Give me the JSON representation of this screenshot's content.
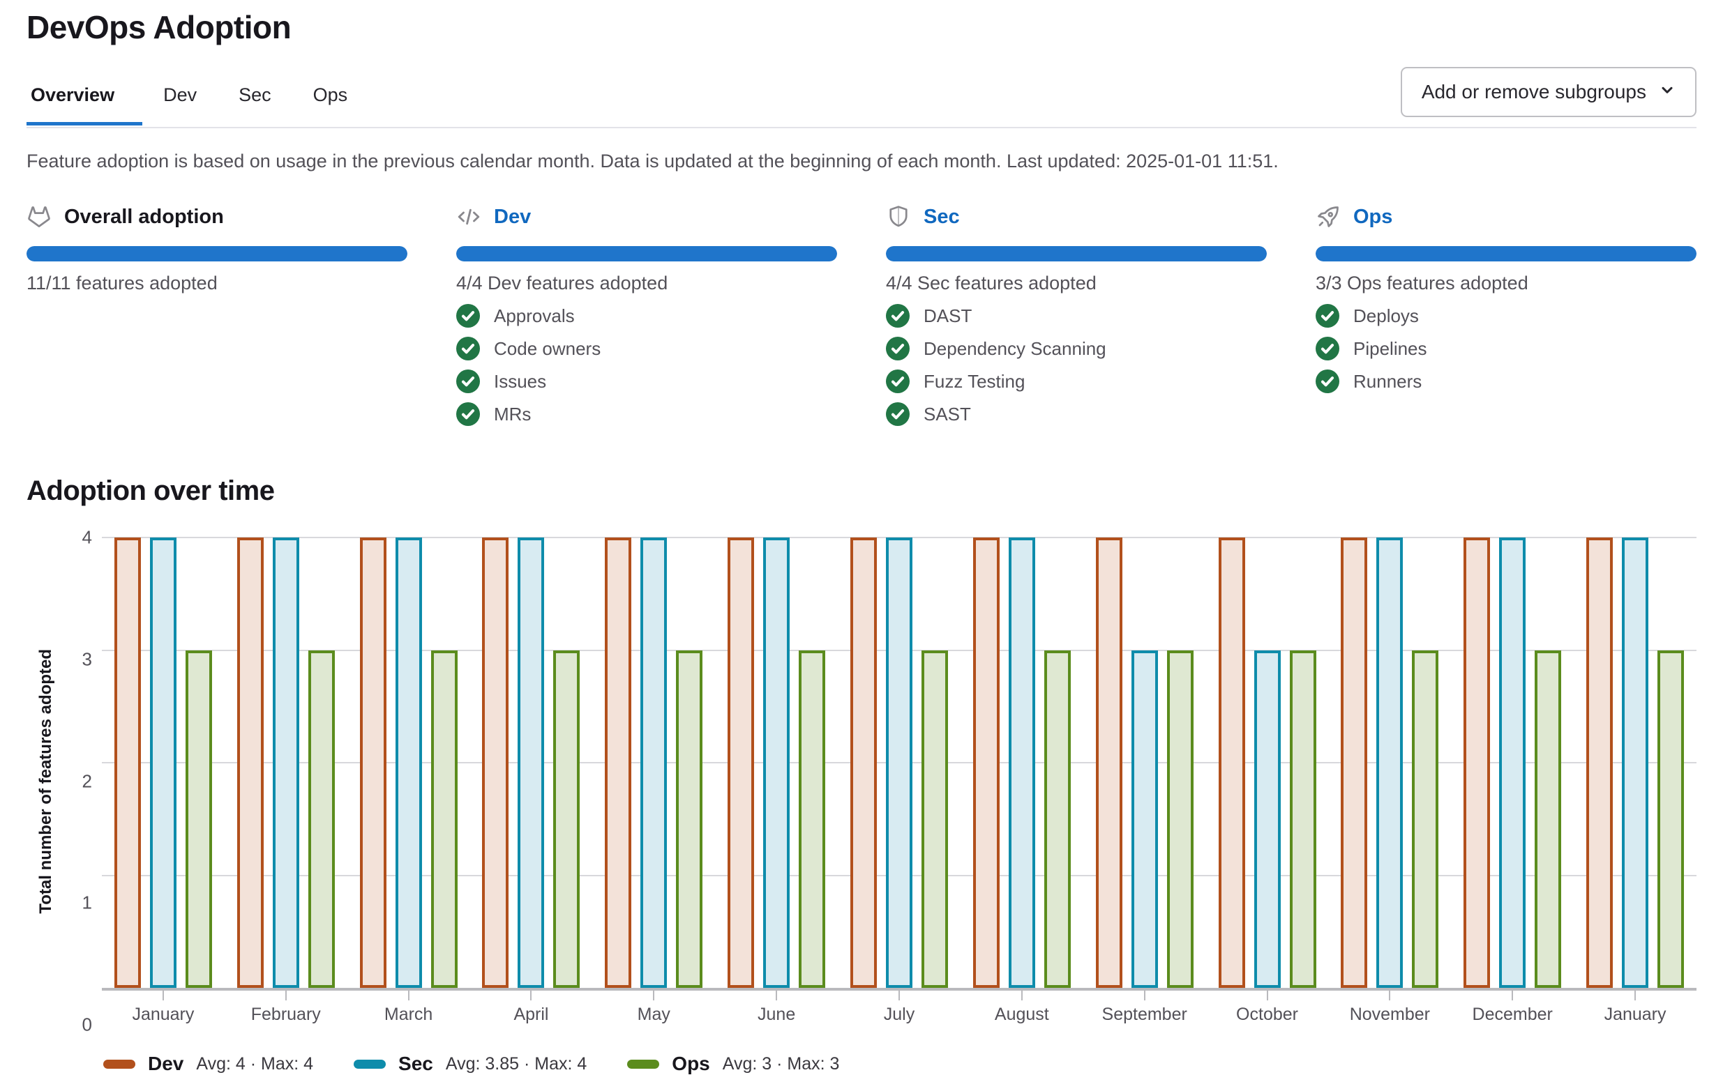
{
  "page": {
    "title": "DevOps Adoption"
  },
  "tabs": [
    {
      "label": "Overview",
      "active": true
    },
    {
      "label": "Dev",
      "active": false
    },
    {
      "label": "Sec",
      "active": false
    },
    {
      "label": "Ops",
      "active": false
    }
  ],
  "subgroups_button": {
    "label": "Add or remove subgroups",
    "icon": "chevron-down-icon"
  },
  "description": "Feature adoption is based on usage in the previous calendar month. Data is updated at the beginning of each month. Last updated: 2025-01-01 11:51.",
  "summary_cards": [
    {
      "icon": "tanuki-icon",
      "title": "Overall adoption",
      "title_is_link": false,
      "progress_percent": 100,
      "progress_label": "11/11 features adopted",
      "features": []
    },
    {
      "icon": "code-icon",
      "title": "Dev",
      "title_is_link": true,
      "progress_percent": 100,
      "progress_label": "4/4 Dev features adopted",
      "features": [
        "Approvals",
        "Code owners",
        "Issues",
        "MRs"
      ]
    },
    {
      "icon": "shield-icon",
      "title": "Sec",
      "title_is_link": true,
      "progress_percent": 100,
      "progress_label": "4/4 Sec features adopted",
      "features": [
        "DAST",
        "Dependency Scanning",
        "Fuzz Testing",
        "SAST"
      ]
    },
    {
      "icon": "rocket-icon",
      "title": "Ops",
      "title_is_link": true,
      "progress_percent": 100,
      "progress_label": "3/3 Ops features adopted",
      "features": [
        "Deploys",
        "Pipelines",
        "Runners"
      ]
    }
  ],
  "chart_section_title": "Adoption over time",
  "chart_data": {
    "type": "bar",
    "title": "Adoption over time",
    "categories": [
      "January",
      "February",
      "March",
      "April",
      "May",
      "June",
      "July",
      "August",
      "September",
      "October",
      "November",
      "December",
      "January"
    ],
    "series": [
      {
        "name": "Dev",
        "values": [
          4,
          4,
          4,
          4,
          4,
          4,
          4,
          4,
          4,
          4,
          4,
          4,
          4
        ],
        "color": "#b2501c",
        "fill": "#f3e2d9",
        "legend_stats": "Avg: 4 · Max: 4"
      },
      {
        "name": "Sec",
        "values": [
          4,
          4,
          4,
          4,
          4,
          4,
          4,
          4,
          3,
          3,
          4,
          4,
          4
        ],
        "color": "#0e8cab",
        "fill": "#d8ebf2",
        "legend_stats": "Avg: 3.85 · Max: 4"
      },
      {
        "name": "Ops",
        "values": [
          3,
          3,
          3,
          3,
          3,
          3,
          3,
          3,
          3,
          3,
          3,
          3,
          3
        ],
        "color": "#5b8c1d",
        "fill": "#dfe8d2",
        "legend_stats": "Avg: 3 · Max: 3"
      }
    ],
    "ylabel": "Total number of features adopted",
    "xlabel": "",
    "yticks": [
      0,
      1,
      2,
      3,
      4
    ],
    "ylim": [
      0,
      4
    ],
    "grid": true,
    "legend_position": "bottom"
  },
  "theme": {
    "accent_blue": "#1f75cb",
    "link_blue": "#1068bf",
    "check_green": "#217645",
    "progress_blue": "#1f75cb"
  }
}
